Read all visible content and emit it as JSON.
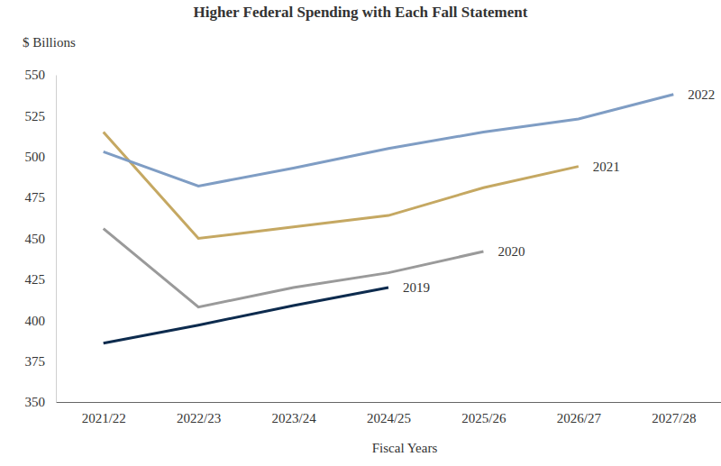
{
  "chart_data": {
    "type": "line",
    "title": "Higher Federal Spending with Each Fall Statement",
    "y_label": "$ Billions",
    "x_label": "Fiscal Years",
    "categories": [
      "2021/22",
      "2022/23",
      "2023/24",
      "2024/25",
      "2025/26",
      "2026/27",
      "2027/28"
    ],
    "series": [
      {
        "name": "2019",
        "color": "#0d2b4e",
        "values": [
          386,
          397,
          409,
          420,
          null,
          null,
          null
        ]
      },
      {
        "name": "2020",
        "color": "#9a9a9a",
        "values": [
          456,
          408,
          420,
          429,
          442,
          null,
          null
        ]
      },
      {
        "name": "2021",
        "color": "#c5a862",
        "values": [
          515,
          450,
          457,
          464,
          481,
          494,
          null
        ]
      },
      {
        "name": "2022",
        "color": "#7f9dc4",
        "values": [
          503,
          482,
          493,
          505,
          515,
          523,
          538
        ]
      }
    ],
    "ylim": [
      350,
      550
    ],
    "yticks": [
      350,
      375,
      400,
      425,
      450,
      475,
      500,
      525,
      550
    ],
    "grid": false
  }
}
